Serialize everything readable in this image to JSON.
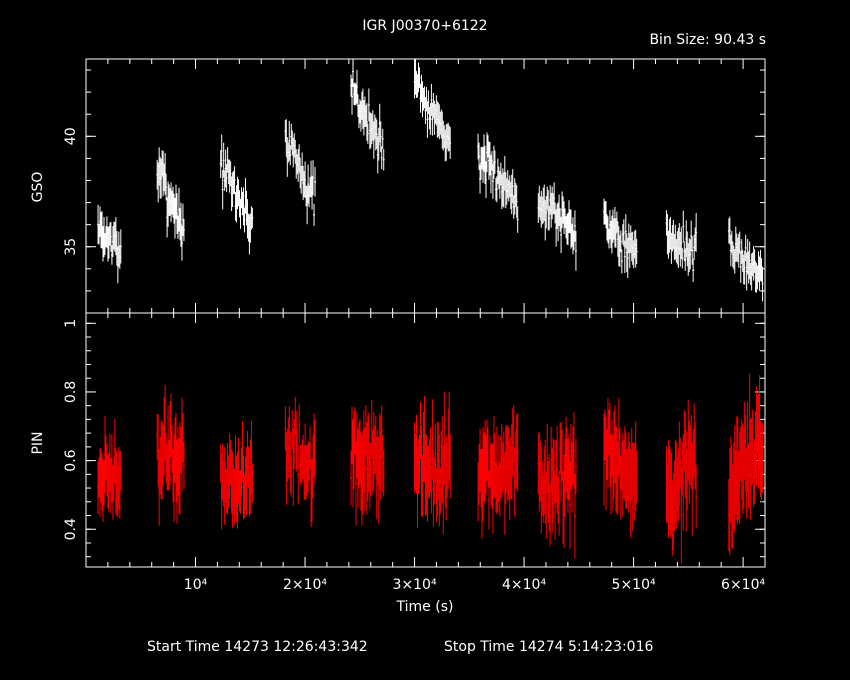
{
  "title": "IGR J00370+6122",
  "bin_size": "Bin Size: 90.43 s",
  "footer": {
    "start": "Start Time 14273 12:26:43:342",
    "stop": "Stop Time 14274  5:14:23:016"
  },
  "colors": {
    "gso": "#ffffff",
    "pin": "#ff0000",
    "axes": "#ffffff",
    "background": "#000000"
  },
  "chart_data": [
    {
      "type": "scatter",
      "name": "GSO",
      "xlabel": "Time (s)",
      "ylabel": "GSO",
      "xlim": [
        0,
        62000
      ],
      "ylim": [
        32,
        43.5
      ],
      "y_ticks": [
        {
          "v": 35,
          "label": "35"
        },
        {
          "v": 40,
          "label": "40"
        }
      ],
      "segments": [
        {
          "t0": 1100,
          "t1": 3200,
          "start": 35.8,
          "end": 34.8,
          "noise": 0.8,
          "err": 0.8
        },
        {
          "t0": 6500,
          "t1": 9000,
          "start": 38.5,
          "end": 35.8,
          "noise": 0.9,
          "err": 0.9
        },
        {
          "t0": 12300,
          "t1": 15200,
          "start": 38.7,
          "end": 36.0,
          "noise": 0.8,
          "err": 0.8
        },
        {
          "t0": 18200,
          "t1": 21000,
          "start": 40.0,
          "end": 37.0,
          "noise": 0.8,
          "err": 0.8
        },
        {
          "t0": 24200,
          "t1": 27200,
          "start": 42.0,
          "end": 39.5,
          "noise": 0.8,
          "err": 0.8
        },
        {
          "t0": 30000,
          "t1": 33300,
          "start": 42.6,
          "end": 39.7,
          "noise": 0.8,
          "err": 0.8
        },
        {
          "t0": 35800,
          "t1": 39500,
          "start": 39.0,
          "end": 37.2,
          "noise": 0.8,
          "err": 0.8
        },
        {
          "t0": 41300,
          "t1": 44800,
          "start": 37.2,
          "end": 35.7,
          "noise": 0.8,
          "err": 0.8
        },
        {
          "t0": 47300,
          "t1": 50300,
          "start": 36.3,
          "end": 34.5,
          "noise": 0.8,
          "err": 0.8
        },
        {
          "t0": 53000,
          "t1": 55800,
          "start": 35.6,
          "end": 34.6,
          "noise": 0.8,
          "err": 0.8
        },
        {
          "t0": 58700,
          "t1": 61800,
          "start": 35.0,
          "end": 33.8,
          "noise": 0.8,
          "err": 0.8
        }
      ]
    },
    {
      "type": "scatter",
      "name": "PIN",
      "xlabel": "Time (s)",
      "ylabel": "PIN",
      "xlim": [
        0,
        62000
      ],
      "ylim": [
        0.29,
        1.03
      ],
      "y_ticks": [
        {
          "v": 0.4,
          "label": "0.4"
        },
        {
          "v": 0.6,
          "label": "0.6"
        },
        {
          "v": 0.8,
          "label": "0.8"
        },
        {
          "v": 1.0,
          "label": "1"
        }
      ],
      "x_ticks": [
        {
          "v": 10000,
          "label": "10⁴"
        },
        {
          "v": 20000,
          "label": "2×10⁴"
        },
        {
          "v": 30000,
          "label": "3×10⁴"
        },
        {
          "v": 40000,
          "label": "4×10⁴"
        },
        {
          "v": 50000,
          "label": "5×10⁴"
        },
        {
          "v": 60000,
          "label": "6×10⁴"
        }
      ],
      "segments": [
        {
          "t0": 1100,
          "t1": 3200,
          "start": 0.56,
          "end": 0.54,
          "noise": 0.09,
          "err": 0.1
        },
        {
          "t0": 6500,
          "t1": 9000,
          "start": 0.62,
          "end": 0.6,
          "noise": 0.1,
          "err": 0.12
        },
        {
          "t0": 12300,
          "t1": 15200,
          "start": 0.54,
          "end": 0.56,
          "noise": 0.08,
          "err": 0.1
        },
        {
          "t0": 18200,
          "t1": 21000,
          "start": 0.62,
          "end": 0.6,
          "noise": 0.09,
          "err": 0.1
        },
        {
          "t0": 24200,
          "t1": 27200,
          "start": 0.62,
          "end": 0.6,
          "noise": 0.1,
          "err": 0.12
        },
        {
          "t0": 30000,
          "t1": 33300,
          "start": 0.6,
          "end": 0.56,
          "noise": 0.1,
          "err": 0.12
        },
        {
          "t0": 35800,
          "t1": 39500,
          "start": 0.55,
          "end": 0.6,
          "noise": 0.1,
          "err": 0.12
        },
        {
          "t0": 41300,
          "t1": 44800,
          "start": 0.52,
          "end": 0.54,
          "noise": 0.1,
          "err": 0.12
        },
        {
          "t0": 47300,
          "t1": 50300,
          "start": 0.62,
          "end": 0.54,
          "noise": 0.09,
          "err": 0.12
        },
        {
          "t0": 53000,
          "t1": 55800,
          "start": 0.52,
          "end": 0.58,
          "noise": 0.1,
          "err": 0.13
        },
        {
          "t0": 58700,
          "t1": 61800,
          "start": 0.5,
          "end": 0.62,
          "noise": 0.1,
          "err": 0.14
        }
      ]
    }
  ]
}
